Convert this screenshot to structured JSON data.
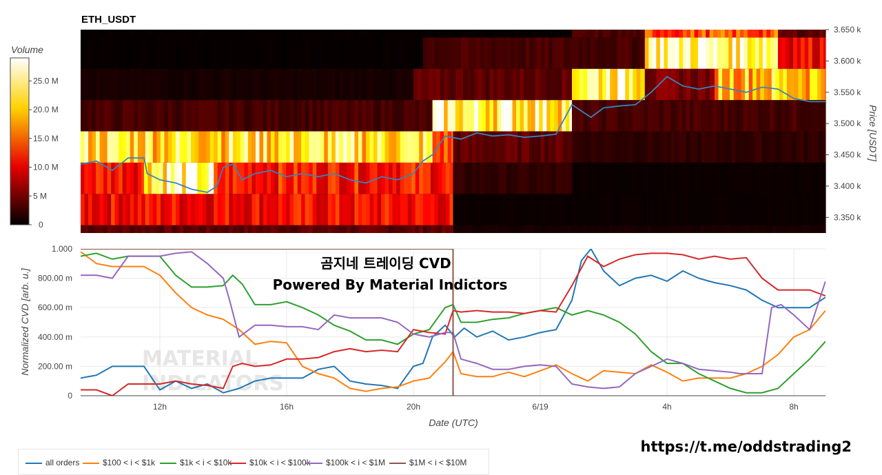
{
  "colors": {
    "all_orders": "#1f77b4",
    "s100_1k": "#ff7f0e",
    "s1k_10k": "#2ca02c",
    "s10k_100k": "#d62728",
    "s100k_1m": "#9467bd",
    "s1m_10m": "#8c564b",
    "price_line": "#3b83bd",
    "grid": "#e8e8e8"
  },
  "chart_data": [
    {
      "type": "heatmap",
      "title": "ETH_USDT",
      "ylabel": "Price [USDT]",
      "colorbar_title": "Volume",
      "colorscale": "hot",
      "colorbar_ticks": [
        "0",
        "5 M",
        "10.0 M",
        "15.0 M",
        "20.0 M",
        "25.0 M"
      ],
      "colorbar_values": [
        0,
        5,
        10,
        15,
        20,
        25
      ],
      "colorbar_max": 29,
      "ylim": [
        3325,
        3650
      ],
      "y_ticks": [
        3350,
        3400,
        3450,
        3500,
        3550,
        3600,
        3650
      ],
      "y_tick_labels": [
        "3.350 k",
        "3.400 k",
        "3.450 k",
        "3.500 k",
        "3.550 k",
        "3.600 k",
        "3.650 k"
      ],
      "xlim": [
        9.5,
        33.0
      ],
      "price_bands": [
        {
          "low": 3325,
          "high": 3337.5,
          "segments": [
            {
              "x0": 9.5,
              "x1": 21.25,
              "value": 4
            },
            {
              "x0": 21.25,
              "x1": 33.0,
              "value": 1
            }
          ]
        },
        {
          "low": 3337.5,
          "high": 3387.5,
          "segments": [
            {
              "x0": 9.5,
              "x1": 21.25,
              "value": 11
            },
            {
              "x0": 21.25,
              "x1": 33.0,
              "value": 0.5
            }
          ]
        },
        {
          "low": 3387.5,
          "high": 3437.5,
          "segments": [
            {
              "x0": 9.5,
              "x1": 11.5,
              "value": 12
            },
            {
              "x0": 11.5,
              "x1": 13.7,
              "value": 25
            },
            {
              "x0": 13.7,
              "x1": 21.25,
              "value": 12
            },
            {
              "x0": 21.25,
              "x1": 25.0,
              "value": 2
            },
            {
              "x0": 25.0,
              "x1": 33.0,
              "value": 0.5
            }
          ]
        },
        {
          "low": 3437.5,
          "high": 3487.5,
          "segments": [
            {
              "x0": 9.5,
              "x1": 20.6,
              "value": 22
            },
            {
              "x0": 20.6,
              "x1": 21.25,
              "value": 14
            },
            {
              "x0": 21.25,
              "x1": 25.0,
              "value": 4
            },
            {
              "x0": 25.0,
              "x1": 33.0,
              "value": 2
            }
          ]
        },
        {
          "low": 3487.5,
          "high": 3537.5,
          "segments": [
            {
              "x0": 9.5,
              "x1": 20.6,
              "value": 3
            },
            {
              "x0": 20.6,
              "x1": 25.0,
              "value": 24
            },
            {
              "x0": 25.0,
              "x1": 33.0,
              "value": 3
            }
          ]
        },
        {
          "low": 3537.5,
          "high": 3587.5,
          "segments": [
            {
              "x0": 9.5,
              "x1": 20.0,
              "value": 1
            },
            {
              "x0": 20.0,
              "x1": 25.0,
              "value": 4
            },
            {
              "x0": 25.0,
              "x1": 27.3,
              "value": 25
            },
            {
              "x0": 27.3,
              "x1": 29.5,
              "value": 5
            },
            {
              "x0": 29.5,
              "x1": 33.0,
              "value": 20
            }
          ]
        },
        {
          "low": 3587.5,
          "high": 3637.5,
          "segments": [
            {
              "x0": 9.5,
              "x1": 20.3,
              "value": 0.3
            },
            {
              "x0": 20.3,
              "x1": 27.3,
              "value": 3
            },
            {
              "x0": 27.3,
              "x1": 31.5,
              "value": 26
            },
            {
              "x0": 31.5,
              "x1": 33.0,
              "value": 11
            }
          ]
        },
        {
          "low": 3637.5,
          "high": 3650,
          "segments": [
            {
              "x0": 9.5,
              "x1": 25.0,
              "value": 0.3
            },
            {
              "x0": 25.0,
              "x1": 27.3,
              "value": 3
            },
            {
              "x0": 27.3,
              "x1": 31.5,
              "value": 14
            },
            {
              "x0": 31.5,
              "x1": 33.0,
              "value": 4
            }
          ]
        }
      ],
      "price_series": {
        "x": [
          9.5,
          10.0,
          10.5,
          11.0,
          11.5,
          11.6,
          12.0,
          12.5,
          13.0,
          13.5,
          13.8,
          14.0,
          14.3,
          14.6,
          15.0,
          15.5,
          16.0,
          16.5,
          17.0,
          17.5,
          18.0,
          18.5,
          19.0,
          19.5,
          20.0,
          20.3,
          20.6,
          21.0,
          21.5,
          22.0,
          22.5,
          23.0,
          23.5,
          24.0,
          24.5,
          25.0,
          25.3,
          25.6,
          26.0,
          26.5,
          27.0,
          27.5,
          28.0,
          28.5,
          29.0,
          29.5,
          30.0,
          30.5,
          31.0,
          31.5,
          32.0,
          32.5,
          33.0
        ],
        "y": [
          3435,
          3440,
          3425,
          3445,
          3445,
          3420,
          3410,
          3405,
          3395,
          3390,
          3400,
          3430,
          3435,
          3410,
          3420,
          3425,
          3415,
          3420,
          3415,
          3420,
          3410,
          3405,
          3415,
          3410,
          3420,
          3440,
          3450,
          3480,
          3475,
          3485,
          3480,
          3482,
          3478,
          3480,
          3483,
          3530,
          3520,
          3510,
          3525,
          3528,
          3530,
          3550,
          3575,
          3560,
          3555,
          3560,
          3555,
          3550,
          3558,
          3555,
          3540,
          3535,
          3535
        ]
      }
    },
    {
      "type": "line",
      "xlabel": "Date (UTC)",
      "ylabel": "Normalized CVD [arb. u.]",
      "xlim": [
        9.5,
        33.0
      ],
      "ylim": [
        0,
        1
      ],
      "y_ticks": [
        0,
        0.2,
        0.4,
        0.6,
        0.8,
        1.0
      ],
      "y_tick_labels": [
        "0",
        "200.00 m",
        "400.00 m",
        "600.00 m",
        "800.00 m",
        "1.000"
      ],
      "x_ticks": [
        12,
        16,
        20,
        24,
        28,
        32
      ],
      "x_tick_labels": [
        "12h",
        "16h",
        "20h",
        "6/19",
        "4h",
        "8h"
      ],
      "annotation_title": "곰지네 트레이딩 CVD",
      "annotation_subtitle": "Powered By Material Indictors",
      "watermark": [
        "MATERIAL",
        "INDICATORS"
      ],
      "series": [
        {
          "name": "all orders",
          "color_key": "all_orders",
          "x": [
            9.5,
            10.0,
            10.5,
            11.0,
            11.5,
            12.0,
            12.5,
            13.0,
            13.5,
            14.0,
            14.5,
            15.0,
            15.5,
            16.0,
            16.5,
            17.0,
            17.5,
            18.0,
            18.5,
            19.0,
            19.5,
            20.0,
            20.3,
            20.6,
            21.0,
            21.3,
            21.6,
            22.0,
            22.5,
            23.0,
            23.5,
            24.0,
            24.5,
            25.0,
            25.3,
            25.6,
            26.0,
            26.5,
            27.0,
            27.5,
            28.0,
            28.5,
            29.0,
            29.5,
            30.0,
            30.5,
            31.0,
            31.3,
            31.5,
            32.0,
            32.5,
            33.0
          ],
          "y": [
            0.12,
            0.14,
            0.2,
            0.2,
            0.2,
            0.04,
            0.1,
            0.05,
            0.08,
            0.02,
            0.05,
            0.1,
            0.12,
            0.12,
            0.12,
            0.18,
            0.2,
            0.1,
            0.08,
            0.07,
            0.05,
            0.2,
            0.22,
            0.4,
            0.48,
            0.4,
            0.46,
            0.4,
            0.44,
            0.38,
            0.4,
            0.43,
            0.45,
            0.65,
            0.92,
            1.0,
            0.85,
            0.75,
            0.8,
            0.82,
            0.78,
            0.85,
            0.8,
            0.77,
            0.75,
            0.72,
            0.65,
            0.62,
            0.6,
            0.6,
            0.6,
            0.67
          ]
        },
        {
          "name": "$100 < i < $1k",
          "color_key": "s100_1k",
          "x": [
            9.5,
            10.0,
            10.5,
            11.0,
            11.5,
            12.0,
            12.5,
            13.0,
            13.5,
            14.0,
            14.5,
            15.0,
            15.5,
            16.0,
            16.5,
            17.0,
            17.5,
            18.0,
            18.5,
            19.0,
            19.5,
            20.0,
            20.5,
            21.0,
            21.25,
            21.5,
            22.0,
            22.5,
            23.0,
            23.5,
            24.0,
            24.5,
            25.0,
            25.5,
            26.0,
            26.5,
            27.0,
            27.5,
            28.0,
            28.5,
            29.0,
            29.5,
            30.0,
            30.5,
            31.0,
            31.5,
            32.0,
            32.5,
            33.0
          ],
          "y": [
            0.98,
            0.9,
            0.88,
            0.88,
            0.88,
            0.82,
            0.7,
            0.6,
            0.55,
            0.52,
            0.45,
            0.35,
            0.37,
            0.36,
            0.2,
            0.15,
            0.12,
            0.05,
            0.03,
            0.05,
            0.06,
            0.1,
            0.12,
            0.23,
            0.3,
            0.15,
            0.13,
            0.13,
            0.16,
            0.13,
            0.17,
            0.21,
            0.15,
            0.1,
            0.17,
            0.16,
            0.15,
            0.21,
            0.16,
            0.1,
            0.12,
            0.12,
            0.12,
            0.15,
            0.2,
            0.28,
            0.4,
            0.45,
            0.58
          ]
        },
        {
          "name": "$1k < i < $10k",
          "color_key": "s1k_10k",
          "x": [
            9.5,
            10.0,
            10.5,
            11.0,
            11.5,
            12.0,
            12.5,
            13.0,
            13.5,
            14.0,
            14.3,
            14.6,
            15.0,
            15.5,
            16.0,
            16.5,
            17.0,
            17.5,
            18.0,
            18.5,
            19.0,
            19.5,
            20.0,
            20.5,
            21.0,
            21.25,
            21.5,
            22.0,
            22.5,
            23.0,
            23.5,
            24.0,
            24.5,
            25.0,
            25.5,
            26.0,
            26.5,
            27.0,
            27.5,
            28.0,
            28.5,
            29.0,
            29.5,
            30.0,
            30.5,
            31.0,
            31.5,
            32.0,
            32.5,
            33.0
          ],
          "y": [
            0.95,
            0.97,
            0.93,
            0.95,
            0.95,
            0.95,
            0.82,
            0.74,
            0.74,
            0.75,
            0.82,
            0.76,
            0.62,
            0.62,
            0.64,
            0.6,
            0.55,
            0.48,
            0.44,
            0.38,
            0.38,
            0.35,
            0.42,
            0.45,
            0.6,
            0.62,
            0.5,
            0.5,
            0.52,
            0.53,
            0.56,
            0.58,
            0.6,
            0.55,
            0.58,
            0.55,
            0.5,
            0.42,
            0.3,
            0.22,
            0.22,
            0.15,
            0.1,
            0.05,
            0.02,
            0.02,
            0.05,
            0.15,
            0.25,
            0.37
          ]
        },
        {
          "name": "$10k < i < $100k",
          "color_key": "s10k_100k",
          "x": [
            9.5,
            10.0,
            10.5,
            11.0,
            11.5,
            12.0,
            12.5,
            13.0,
            13.5,
            14.0,
            14.3,
            14.6,
            15.0,
            15.5,
            16.0,
            16.5,
            17.0,
            17.5,
            18.0,
            18.5,
            19.0,
            19.5,
            20.0,
            20.5,
            21.0,
            21.25,
            21.5,
            22.0,
            22.5,
            23.0,
            23.5,
            24.0,
            24.5,
            25.0,
            25.5,
            26.0,
            26.5,
            27.0,
            27.5,
            28.0,
            28.5,
            29.0,
            29.5,
            30.0,
            30.5,
            31.0,
            31.5,
            32.0,
            32.5,
            33.0
          ],
          "y": [
            0.04,
            0.04,
            0.0,
            0.08,
            0.08,
            0.08,
            0.1,
            0.08,
            0.07,
            0.05,
            0.2,
            0.22,
            0.2,
            0.21,
            0.25,
            0.25,
            0.26,
            0.3,
            0.32,
            0.3,
            0.31,
            0.3,
            0.45,
            0.43,
            0.42,
            0.58,
            0.57,
            0.58,
            0.57,
            0.57,
            0.56,
            0.58,
            0.57,
            0.75,
            0.95,
            0.88,
            0.93,
            0.96,
            0.97,
            0.97,
            0.96,
            0.93,
            0.95,
            0.93,
            0.94,
            0.8,
            0.72,
            0.72,
            0.72,
            0.68
          ]
        },
        {
          "name": "$100k < i < $1M",
          "color_key": "s100k_1m",
          "x": [
            9.5,
            10.0,
            10.5,
            11.0,
            11.5,
            12.0,
            12.5,
            13.0,
            13.5,
            14.0,
            14.2,
            14.5,
            15.0,
            15.5,
            16.0,
            16.5,
            17.0,
            17.5,
            18.0,
            18.5,
            19.0,
            19.5,
            20.0,
            20.5,
            21.0,
            21.25,
            21.5,
            22.0,
            22.5,
            23.0,
            23.5,
            24.0,
            24.5,
            25.0,
            25.5,
            26.0,
            26.5,
            27.0,
            27.5,
            28.0,
            28.5,
            29.0,
            29.5,
            30.0,
            30.3,
            30.6,
            31.0,
            31.3,
            31.6,
            32.0,
            32.5,
            33.0
          ],
          "y": [
            0.82,
            0.82,
            0.8,
            0.95,
            0.95,
            0.95,
            0.97,
            0.98,
            0.9,
            0.8,
            0.65,
            0.4,
            0.48,
            0.48,
            0.47,
            0.47,
            0.45,
            0.55,
            0.53,
            0.53,
            0.53,
            0.5,
            0.42,
            0.4,
            0.43,
            0.43,
            0.25,
            0.22,
            0.18,
            0.18,
            0.2,
            0.21,
            0.2,
            0.08,
            0.06,
            0.05,
            0.06,
            0.15,
            0.2,
            0.25,
            0.22,
            0.18,
            0.17,
            0.16,
            0.15,
            0.15,
            0.15,
            0.6,
            0.62,
            0.55,
            0.45,
            0.78
          ]
        },
        {
          "name": "$1M < i < $10M",
          "color_key": "s1m_10m",
          "x": [
            9.5,
            21.1,
            21.25,
            21.25
          ],
          "y": [
            1.0,
            1.0,
            1.0,
            0.0
          ]
        }
      ]
    }
  ],
  "url_text": "https://t.me/oddstrading2"
}
